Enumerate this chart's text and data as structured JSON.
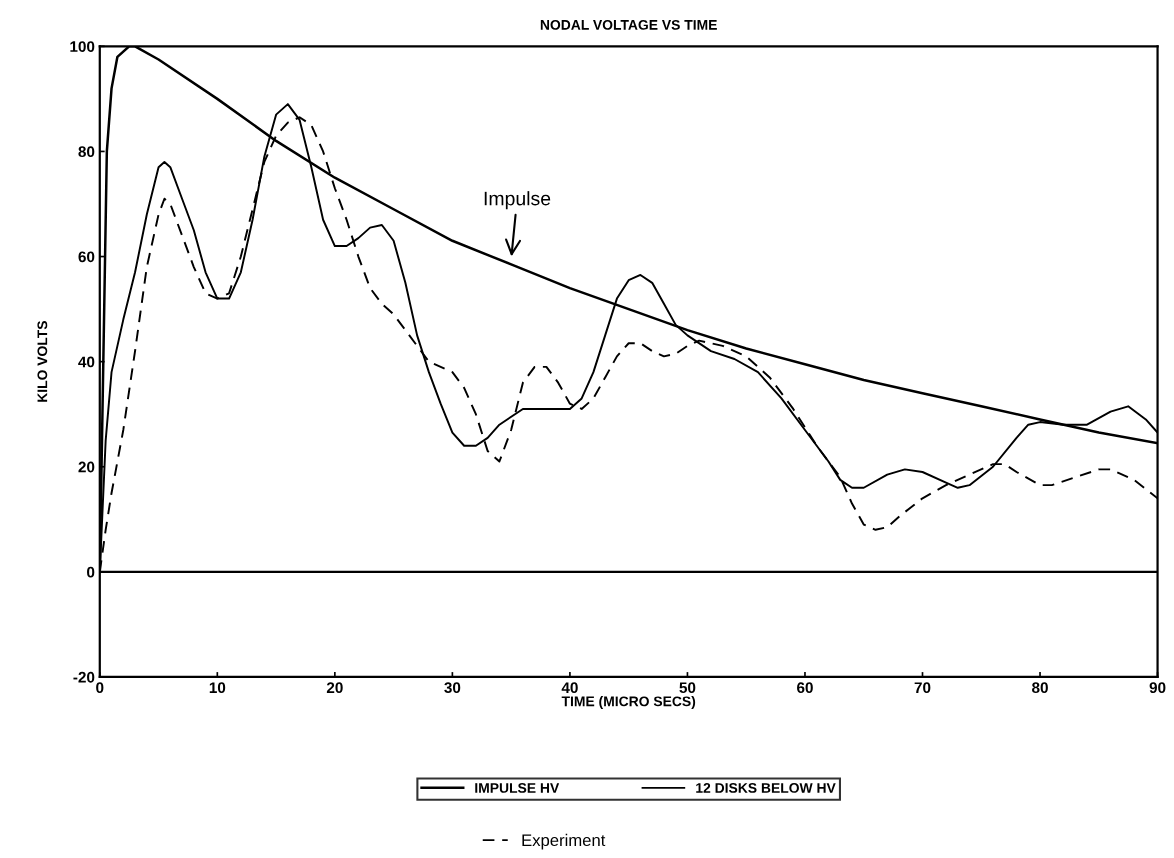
{
  "chart_data": {
    "type": "line",
    "title": "NODAL VOLTAGE VS TIME",
    "xlabel": "TIME (MICRO SECS)",
    "ylabel": "KILO VOLTS",
    "xlim": [
      0,
      90
    ],
    "xticks": [
      0,
      10,
      20,
      30,
      40,
      50,
      60,
      70,
      80,
      90
    ],
    "ylim": [
      -20,
      100
    ],
    "yticks": [
      -20,
      0,
      20,
      40,
      60,
      80,
      100
    ],
    "grid": false,
    "legend": "bottom",
    "marker": "none",
    "ref_lines": [
      {
        "axis": "y",
        "value": 0,
        "color": "#000000",
        "line_style": "solid"
      }
    ],
    "annotations": [
      {
        "text": "Impulse",
        "x": 35,
        "y": 59.5
      }
    ],
    "series": [
      {
        "name": "IMPULSE HV",
        "color": "#000000",
        "line_style": "solid",
        "x": [
          0,
          0.3,
          0.6,
          1,
          1.5,
          2.5,
          3,
          5,
          10,
          15,
          20,
          25,
          30,
          35,
          40,
          45,
          50,
          55,
          60,
          65,
          70,
          75,
          80,
          85,
          90
        ],
        "values": [
          0,
          40,
          80,
          92,
          98,
          100,
          100,
          97.5,
          90,
          82,
          75,
          69,
          63,
          58.5,
          54,
          50,
          46,
          42.5,
          39.5,
          36.5,
          34,
          31.5,
          29,
          26.5,
          24.5
        ]
      },
      {
        "name": "12 DISKS BELOW HV",
        "color": "#000000",
        "line_style": "solid",
        "x": [
          0,
          0.5,
          1,
          2,
          3,
          4,
          5,
          5.5,
          6,
          7,
          8,
          9,
          10,
          11,
          12,
          13,
          14,
          15,
          16,
          17,
          18,
          19,
          20,
          21,
          22,
          23,
          24,
          25,
          26,
          27,
          28,
          29,
          30,
          31,
          32,
          33,
          34,
          36,
          38,
          40,
          41,
          42,
          43,
          44,
          45,
          46,
          47,
          48,
          49,
          50,
          52,
          54,
          56,
          58,
          60,
          62,
          63,
          64,
          65,
          67,
          68.5,
          70,
          72,
          73,
          74,
          76,
          78,
          79,
          80,
          82,
          84,
          86,
          87.5,
          89,
          90
        ],
        "values": [
          0,
          25,
          38,
          48,
          57,
          68,
          77,
          78,
          77,
          71,
          65,
          57,
          52,
          52,
          57,
          67,
          79,
          87,
          89,
          86,
          77,
          67,
          62,
          62,
          63.5,
          65.5,
          66,
          63,
          55,
          45,
          38,
          32,
          26.5,
          24,
          24,
          25.5,
          28,
          31,
          31,
          31,
          33,
          38,
          45,
          52,
          55.5,
          56.5,
          55,
          51,
          47,
          45,
          42,
          40.5,
          38,
          33,
          27,
          21,
          17.5,
          16,
          16,
          18.5,
          19.5,
          19,
          17,
          16,
          16.5,
          20,
          25.5,
          28,
          28.5,
          28,
          28,
          30.5,
          31.5,
          29,
          26.5
        ]
      },
      {
        "name": "Experiment",
        "color": "#000000",
        "line_style": "dashed",
        "x": [
          0,
          0.5,
          1,
          2,
          3,
          4,
          5,
          5.5,
          6,
          7,
          8,
          9,
          10,
          11,
          12,
          13,
          14,
          15,
          16,
          17,
          18,
          19,
          20,
          21,
          22,
          23,
          24,
          25,
          26,
          27,
          28,
          30,
          31,
          32,
          33,
          34,
          35,
          36,
          37,
          38,
          39,
          40,
          41,
          42,
          43,
          44,
          45,
          46,
          47,
          48,
          49,
          50,
          51,
          53,
          55,
          57,
          59,
          61,
          63,
          64,
          65,
          66,
          67,
          68,
          70,
          72,
          74,
          76,
          77,
          78,
          80,
          81,
          83,
          85,
          86,
          88,
          90
        ],
        "values": [
          0,
          8,
          15,
          27,
          42,
          58,
          68,
          71,
          70,
          64,
          58,
          53,
          52,
          53,
          60,
          69,
          78,
          83,
          85.5,
          86.5,
          85,
          80,
          73,
          67,
          60,
          54,
          51,
          49,
          46,
          43,
          40,
          38,
          35,
          30,
          23,
          21,
          27,
          36,
          39,
          39,
          36,
          32,
          31,
          33,
          37,
          41,
          43.5,
          43.5,
          42,
          41,
          41.5,
          43,
          44,
          43,
          41,
          37,
          31,
          24,
          18,
          13,
          9,
          8,
          8.5,
          10.5,
          14,
          16.5,
          18.5,
          20.5,
          20.5,
          19,
          16.5,
          16.5,
          18,
          19.5,
          19.5,
          17.5,
          14
        ]
      }
    ]
  }
}
